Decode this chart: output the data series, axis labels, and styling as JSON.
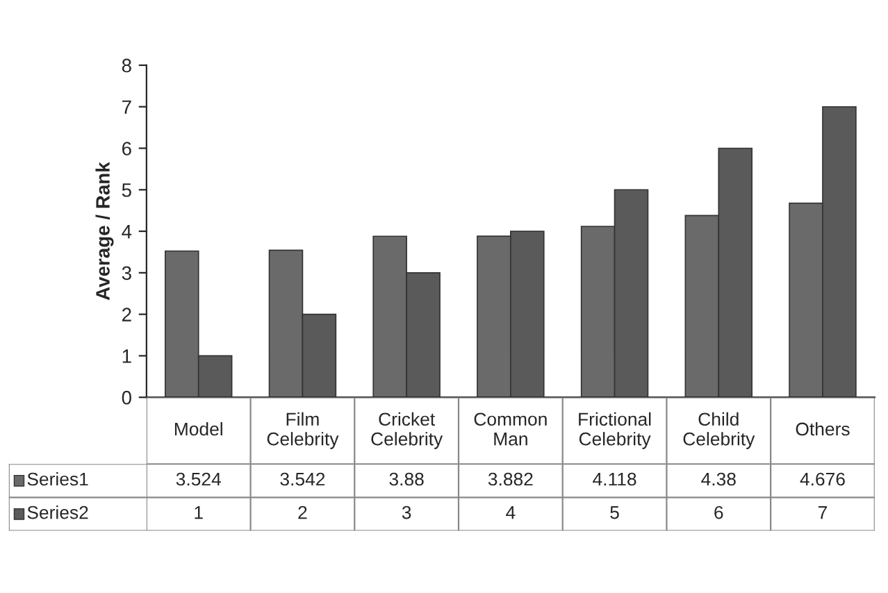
{
  "chart_data": {
    "type": "bar",
    "ylabel": "Average / Rank",
    "categories": [
      "Model",
      "Film Celebrity",
      "Cricket Celebrity",
      "Common Man",
      "Frictional Celebrity",
      "Child Celebrity",
      "Others"
    ],
    "series": [
      {
        "name": "Series1",
        "color": "#6a6a6a",
        "values": [
          3.524,
          3.542,
          3.88,
          3.882,
          4.118,
          4.38,
          4.676
        ]
      },
      {
        "name": "Series2",
        "color": "#5a5a5a",
        "values": [
          1,
          2,
          3,
          4,
          5,
          6,
          7
        ]
      }
    ],
    "ylim": [
      0,
      8
    ],
    "yticks": [
      0,
      1,
      2,
      3,
      4,
      5,
      6,
      7,
      8
    ],
    "grid": false,
    "data_labels": true,
    "legend": "bottom"
  }
}
